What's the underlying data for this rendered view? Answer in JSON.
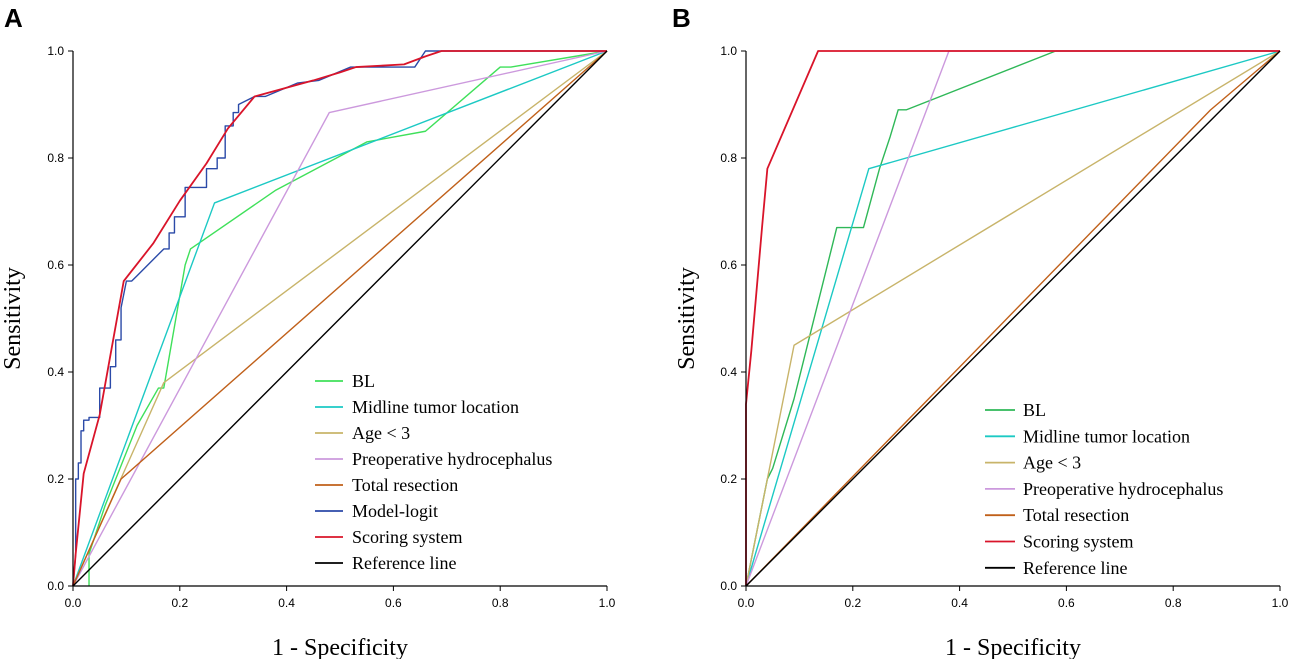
{
  "chart_data": [
    {
      "type": "line",
      "panel_label": "A",
      "xlabel": "1 - Specificity",
      "ylabel": "Sensitivity",
      "xlim": [
        0,
        1
      ],
      "ylim": [
        0,
        1
      ],
      "xticks": [
        "0.0",
        "0.2",
        "0.4",
        "0.6",
        "0.8",
        "1.0"
      ],
      "yticks": [
        "0.0",
        "0.2",
        "0.4",
        "0.6",
        "0.8",
        "1.0"
      ],
      "series": [
        {
          "name": "BL",
          "color": "#3fe05a",
          "x": [
            0.03,
            0.03,
            0.05,
            0.06,
            0.08,
            0.12,
            0.16,
            0.17,
            0.21,
            0.22,
            0.38,
            0.55,
            0.66,
            0.8,
            0.82,
            1.0
          ],
          "y": [
            0.0,
            0.06,
            0.12,
            0.15,
            0.2,
            0.3,
            0.37,
            0.37,
            0.6,
            0.63,
            0.74,
            0.83,
            0.85,
            0.97,
            0.97,
            1.0
          ]
        },
        {
          "name": "Midline tumor location",
          "color": "#1cc9c4",
          "x": [
            0,
            0.265,
            1.0
          ],
          "y": [
            0,
            0.716,
            1.0
          ]
        },
        {
          "name": "Age < 3",
          "color": "#c8b46a",
          "x": [
            0,
            0.17,
            1.0
          ],
          "y": [
            0,
            0.38,
            1.0
          ]
        },
        {
          "name": "Preoperative hydrocephalus",
          "color": "#cc99dd",
          "x": [
            0,
            0.48,
            1.0
          ],
          "y": [
            0,
            0.885,
            1.0
          ]
        },
        {
          "name": "Total resection",
          "color": "#c0601a",
          "x": [
            0,
            0.09,
            1.0
          ],
          "y": [
            0,
            0.2,
            1.0
          ]
        },
        {
          "name": "Model-logit",
          "color": "#2b4aa8",
          "x": [
            0,
            0.005,
            0.005,
            0.01,
            0.01,
            0.015,
            0.015,
            0.02,
            0.02,
            0.03,
            0.03,
            0.05,
            0.05,
            0.07,
            0.07,
            0.08,
            0.08,
            0.09,
            0.09,
            0.1,
            0.11,
            0.12,
            0.17,
            0.18,
            0.18,
            0.19,
            0.19,
            0.21,
            0.21,
            0.25,
            0.25,
            0.27,
            0.27,
            0.285,
            0.285,
            0.3,
            0.3,
            0.31,
            0.31,
            0.34,
            0.36,
            0.42,
            0.46,
            0.52,
            0.57,
            0.61,
            0.64,
            0.66,
            0.66,
            0.7,
            1.0
          ],
          "y": [
            0,
            0.06,
            0.2,
            0.2,
            0.23,
            0.23,
            0.29,
            0.29,
            0.31,
            0.31,
            0.315,
            0.315,
            0.37,
            0.37,
            0.41,
            0.41,
            0.46,
            0.46,
            0.52,
            0.57,
            0.57,
            0.58,
            0.63,
            0.63,
            0.66,
            0.66,
            0.69,
            0.69,
            0.745,
            0.745,
            0.78,
            0.78,
            0.8,
            0.8,
            0.86,
            0.86,
            0.885,
            0.885,
            0.9,
            0.915,
            0.915,
            0.94,
            0.945,
            0.97,
            0.97,
            0.97,
            0.97,
            1.0,
            1.0,
            1.0,
            1.0
          ]
        },
        {
          "name": "Scoring system",
          "color": "#d9142a",
          "x": [
            0,
            0.005,
            0.02,
            0.05,
            0.095,
            0.15,
            0.2,
            0.25,
            0.29,
            0.34,
            0.45,
            0.5,
            0.53,
            0.62,
            0.66,
            0.69,
            1.0
          ],
          "y": [
            0,
            0.06,
            0.21,
            0.32,
            0.57,
            0.64,
            0.72,
            0.79,
            0.855,
            0.915,
            0.945,
            0.96,
            0.97,
            0.975,
            0.99,
            1.0,
            1.0
          ]
        },
        {
          "name": "Reference line",
          "color": "#000000",
          "x": [
            0,
            1
          ],
          "y": [
            0,
            1
          ]
        }
      ]
    },
    {
      "type": "line",
      "panel_label": "B",
      "xlabel": "1 - Specificity",
      "ylabel": "Sensitivity",
      "xlim": [
        0,
        1
      ],
      "ylim": [
        0,
        1
      ],
      "xticks": [
        "0.0",
        "0.2",
        "0.4",
        "0.6",
        "0.8",
        "1.0"
      ],
      "yticks": [
        "0.0",
        "0.2",
        "0.4",
        "0.6",
        "0.8",
        "1.0"
      ],
      "series": [
        {
          "name": "BL",
          "color": "#2fb858",
          "x": [
            0,
            0.04,
            0.05,
            0.09,
            0.12,
            0.17,
            0.2,
            0.22,
            0.25,
            0.27,
            0.285,
            0.3,
            0.58,
            1.0
          ],
          "y": [
            0,
            0.2,
            0.22,
            0.35,
            0.47,
            0.67,
            0.67,
            0.67,
            0.78,
            0.84,
            0.89,
            0.89,
            1.0,
            1.0
          ]
        },
        {
          "name": "Midline tumor location",
          "color": "#1cc9c4",
          "x": [
            0,
            0.23,
            1.0
          ],
          "y": [
            0,
            0.78,
            1.0
          ]
        },
        {
          "name": "Age < 3",
          "color": "#c8b46a",
          "x": [
            0,
            0.09,
            1.0
          ],
          "y": [
            0,
            0.45,
            1.0
          ]
        },
        {
          "name": "Preoperative hydrocephalus",
          "color": "#cc99dd",
          "x": [
            0,
            0.38,
            1.0
          ],
          "y": [
            0,
            1.0,
            1.0
          ]
        },
        {
          "name": "Total resection",
          "color": "#c0601a",
          "x": [
            0,
            0.87,
            1.0
          ],
          "y": [
            0,
            0.89,
            1.0
          ]
        },
        {
          "name": "Scoring system",
          "color": "#d9142a",
          "x": [
            0,
            0,
            0.01,
            0.03,
            0.04,
            0.135,
            1.0
          ],
          "y": [
            0,
            0.34,
            0.44,
            0.67,
            0.78,
            1.0,
            1.0
          ]
        },
        {
          "name": "Reference line",
          "color": "#000000",
          "x": [
            0,
            1
          ],
          "y": [
            0,
            1
          ]
        }
      ]
    }
  ]
}
